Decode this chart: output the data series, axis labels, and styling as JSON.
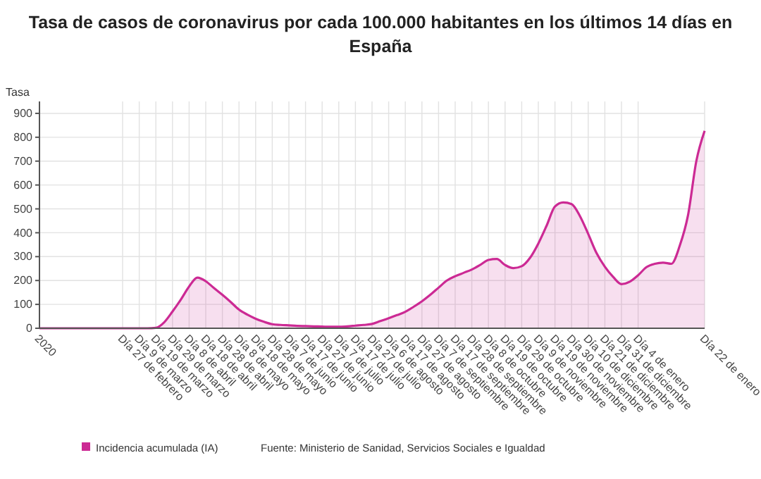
{
  "chart_data": {
    "type": "area",
    "title": "Tasa de casos de coronavirus por cada 100.000 habitantes en los últimos 14 días en España",
    "ylabel": "Tasa",
    "categories": [
      "2020",
      null,
      null,
      null,
      null,
      null,
      null,
      null,
      null,
      null,
      "Día 27 de febrero",
      null,
      "Día 9 de marzo",
      null,
      "Día 19 de marzo",
      null,
      "Día 29 de marzo",
      null,
      "Día 8 de abril",
      null,
      "Día 18 de abril",
      null,
      "Día 28 de abril",
      null,
      "Día 8 de mayo",
      null,
      "Día 18 de mayo",
      null,
      "Día 28 de mayo",
      null,
      "Día 7 de junio",
      null,
      "Día 17 de junio",
      null,
      "Día 27 de junio",
      null,
      "Día 7 de julio",
      null,
      "Día 17 de julio",
      null,
      "Día 27 de julio",
      null,
      "Día 6 de agosto",
      null,
      "Día 17 de agosto",
      null,
      "Día 27 de agosto",
      null,
      "Día 7 de septiembre",
      null,
      "Día 17 de septiembre",
      null,
      "Día 28 de septiembre",
      null,
      "Día 8 de octubre",
      null,
      "Día 19 de octubre",
      null,
      "Día 29 de octubre",
      null,
      "Día 9 de noviembre",
      null,
      "Día 19 de noviembre",
      null,
      "Día 30 de noviembre",
      null,
      "Día 10 de diciembre",
      null,
      "Día 21 de diciembre",
      null,
      "Día 31 de diciembre",
      null,
      "Día 4 de enero",
      null,
      null,
      null,
      null,
      null,
      null,
      null,
      "Día 22 de enero"
    ],
    "series": [
      {
        "name": "Incidencia acumulada (IA)",
        "color": "#cc2a94",
        "values": [
          0,
          0,
          0,
          0,
          0,
          0,
          0,
          0,
          0,
          0,
          0,
          0,
          0,
          0,
          2,
          25,
          70,
          120,
          175,
          212,
          197,
          168,
          140,
          110,
          78,
          57,
          40,
          27,
          17,
          14,
          12,
          10,
          9,
          8,
          7,
          6,
          6,
          8,
          11,
          14,
          18,
          30,
          42,
          55,
          69,
          90,
          113,
          140,
          170,
          200,
          218,
          232,
          246,
          265,
          286,
          290,
          265,
          252,
          260,
          295,
          355,
          430,
          510,
          527,
          520,
          470,
          395,
          315,
          258,
          215,
          185,
          195,
          222,
          256,
          270,
          275,
          270,
          345,
          473,
          700,
          827
        ]
      }
    ],
    "ylim": [
      0,
      950
    ],
    "yticks": [
      0,
      100,
      200,
      300,
      400,
      500,
      600,
      700,
      800,
      900
    ],
    "grid": true,
    "legend": "bottom",
    "annotations": [
      "Fuente: Ministerio de Sanidad, Servicios Sociales e Igualdad"
    ]
  }
}
